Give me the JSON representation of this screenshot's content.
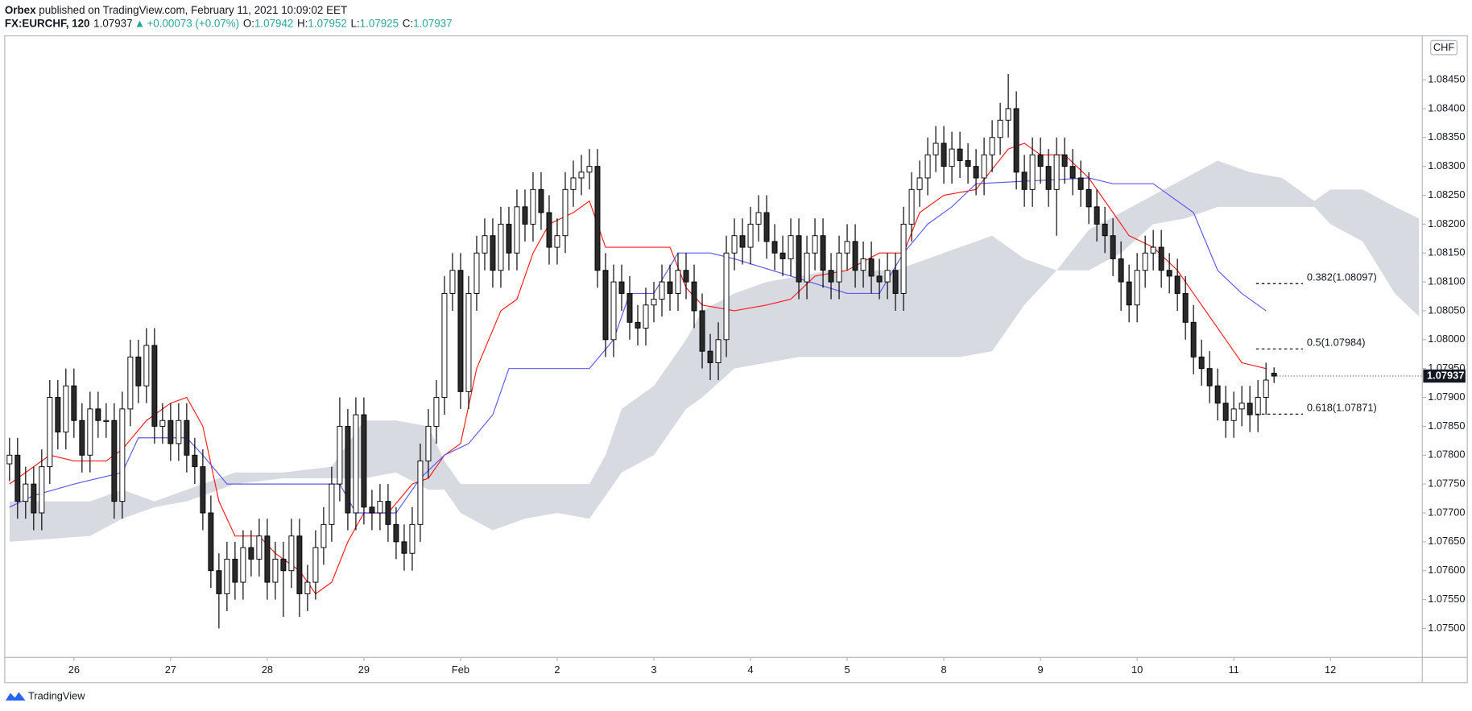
{
  "header": {
    "publisher": "Orbex",
    "published": " published on TradingView.com, February 11, 2021 10:09:02 EET",
    "symbol": "FX:EURCHF, 120",
    "arrow": "▲",
    "change": "+0.00073 (+0.07%)",
    "ohlc_labels": [
      "O:",
      "H:",
      "L:",
      "C:"
    ]
  },
  "footer": {
    "brand": "TradingView"
  },
  "chart_data": {
    "type": "candlestick",
    "currency": "CHF",
    "xlim": [
      -0.6,
      175.4
    ],
    "xticks": [
      {
        "value": 8,
        "label": "26"
      },
      {
        "value": 20,
        "label": "27"
      },
      {
        "value": 32,
        "label": "28"
      },
      {
        "value": 44,
        "label": "29"
      },
      {
        "value": 56,
        "label": "Feb"
      },
      {
        "value": 68,
        "label": "2"
      },
      {
        "value": 80,
        "label": "3"
      },
      {
        "value": 92,
        "label": "4"
      },
      {
        "value": 104,
        "label": "5"
      },
      {
        "value": 116,
        "label": "8"
      },
      {
        "value": 128,
        "label": "9"
      },
      {
        "value": 140,
        "label": "10"
      },
      {
        "value": 152,
        "label": "11"
      },
      {
        "value": 164,
        "label": "12"
      }
    ],
    "ylim": [
      1.0745,
      1.08526
    ],
    "yticks": [
      {
        "value": 1.075,
        "label": "1.07500"
      },
      {
        "value": 1.0755,
        "label": "1.07550"
      },
      {
        "value": 1.076,
        "label": "1.07600"
      },
      {
        "value": 1.0765,
        "label": "1.07650"
      },
      {
        "value": 1.077,
        "label": "1.07700"
      },
      {
        "value": 1.0775,
        "label": "1.07750"
      },
      {
        "value": 1.078,
        "label": "1.07800"
      },
      {
        "value": 1.0785,
        "label": "1.07850"
      },
      {
        "value": 1.079,
        "label": "1.07900"
      },
      {
        "value": 1.0795,
        "label": "1.07950"
      },
      {
        "value": 1.08,
        "label": "1.08000"
      },
      {
        "value": 1.0805,
        "label": "1.08050"
      },
      {
        "value": 1.081,
        "label": "1.08100"
      },
      {
        "value": 1.0815,
        "label": "1.08150"
      },
      {
        "value": 1.082,
        "label": "1.08200"
      },
      {
        "value": 1.0825,
        "label": "1.08250"
      },
      {
        "value": 1.083,
        "label": "1.08300"
      },
      {
        "value": 1.0835,
        "label": "1.08350"
      },
      {
        "value": 1.084,
        "label": "1.08400"
      },
      {
        "value": 1.0845,
        "label": "1.08450"
      }
    ],
    "grid": false,
    "up_color": "#ffffff",
    "down_color": "#2a2a2a",
    "wick_color": "#000000",
    "open": [
      1.07785,
      1.078,
      1.0772,
      1.0775,
      1.077,
      1.0778,
      1.079,
      1.0784,
      1.0792,
      1.0786,
      1.078,
      1.0788,
      1.0786,
      1.0786,
      1.0772,
      1.0788,
      1.0797,
      1.0792,
      1.0799,
      1.0785,
      1.0786,
      1.0782,
      1.0786,
      1.078,
      1.0778,
      1.077,
      1.076,
      1.0756,
      1.0762,
      1.0758,
      1.0764,
      1.0762,
      1.0766,
      1.0758,
      1.0762,
      1.076,
      1.0766,
      1.0756,
      1.0758,
      1.0764,
      1.0768,
      1.0775,
      1.0785,
      1.077,
      1.0787,
      1.0771,
      1.077,
      1.0772,
      1.0768,
      1.0765,
      1.0763,
      1.0768,
      1.0779,
      1.0785,
      1.079,
      1.0808,
      1.0812,
      1.0791,
      1.0808,
      1.0815,
      1.0818,
      1.0812,
      1.082,
      1.0815,
      1.0823,
      1.082,
      1.0826,
      1.0822,
      1.0816,
      1.0818,
      1.0826,
      1.0828,
      1.0829,
      1.083,
      1.0812,
      1.08,
      1.081,
      1.0808,
      1.0803,
      1.0802,
      1.0806,
      1.0807,
      1.081,
      1.0808,
      1.0812,
      1.081,
      1.0805,
      1.0798,
      1.0796,
      1.08,
      1.0815,
      1.0818,
      1.0816,
      1.082,
      1.0822,
      1.0817,
      1.0815,
      1.0814,
      1.0818,
      1.081,
      1.0815,
      1.0818,
      1.0812,
      1.081,
      1.0815,
      1.0817,
      1.0812,
      1.0814,
      1.0811,
      1.081,
      1.0812,
      1.0808,
      1.082,
      1.0826,
      1.0828,
      1.0832,
      1.0834,
      1.083,
      1.0833,
      1.0831,
      1.083,
      1.0828,
      1.0832,
      1.0835,
      1.0838,
      1.084,
      1.0829,
      1.0826,
      1.0832,
      1.083,
      1.0826,
      1.0832,
      1.083,
      1.0828,
      1.0826,
      1.0823,
      1.082,
      1.0818,
      1.0814,
      1.081,
      1.0806,
      1.0812,
      1.0815,
      1.0816,
      1.0812,
      1.0811,
      1.0808,
      1.0803,
      1.0797,
      1.0795,
      1.0792,
      1.0789,
      1.0786,
      1.0788,
      1.0789,
      1.0787,
      1.079,
      1.07942
    ],
    "high": [
      1.0783,
      1.0783,
      1.0778,
      1.0778,
      1.0781,
      1.0793,
      1.0793,
      1.0795,
      1.0795,
      1.0789,
      1.0791,
      1.0791,
      1.0789,
      1.0789,
      1.0791,
      1.08,
      1.08,
      1.0802,
      1.0802,
      1.0789,
      1.0789,
      1.0789,
      1.0789,
      1.0783,
      1.0781,
      1.0773,
      1.0763,
      1.0765,
      1.0765,
      1.0767,
      1.0767,
      1.0769,
      1.0769,
      1.0765,
      1.0765,
      1.0769,
      1.0769,
      1.0761,
      1.0767,
      1.0771,
      1.0778,
      1.079,
      1.0788,
      1.079,
      1.079,
      1.0774,
      1.0775,
      1.0775,
      1.0771,
      1.0768,
      1.0771,
      1.0782,
      1.0788,
      1.0793,
      1.0811,
      1.0815,
      1.0815,
      1.0811,
      1.0818,
      1.0821,
      1.0821,
      1.0823,
      1.0823,
      1.0826,
      1.0826,
      1.0829,
      1.0829,
      1.0825,
      1.0821,
      1.0829,
      1.0831,
      1.0832,
      1.0833,
      1.0833,
      1.0815,
      1.0813,
      1.0813,
      1.0811,
      1.0806,
      1.0809,
      1.081,
      1.0813,
      1.0813,
      1.0815,
      1.0815,
      1.0813,
      1.0808,
      1.0801,
      1.0803,
      1.0818,
      1.0821,
      1.0821,
      1.0823,
      1.0825,
      1.0825,
      1.082,
      1.0818,
      1.0821,
      1.0821,
      1.0818,
      1.0821,
      1.0821,
      1.0815,
      1.0818,
      1.082,
      1.082,
      1.0817,
      1.0817,
      1.0814,
      1.0815,
      1.0815,
      1.0823,
      1.0829,
      1.0831,
      1.0835,
      1.0837,
      1.0837,
      1.0836,
      1.0836,
      1.0834,
      1.0833,
      1.0835,
      1.0838,
      1.0841,
      1.0846,
      1.0843,
      1.0832,
      1.0835,
      1.0835,
      1.0833,
      1.0835,
      1.0835,
      1.0833,
      1.0831,
      1.0829,
      1.0826,
      1.0823,
      1.0821,
      1.0817,
      1.0813,
      1.0815,
      1.0818,
      1.0819,
      1.0819,
      1.0815,
      1.0814,
      1.0811,
      1.0806,
      1.08,
      1.0798,
      1.0795,
      1.0792,
      1.0791,
      1.0792,
      1.0792,
      1.0793,
      1.0796,
      1.07952
    ],
    "low": [
      1.07755,
      1.0769,
      1.0769,
      1.0767,
      1.0767,
      1.0775,
      1.0781,
      1.0781,
      1.0783,
      1.0777,
      1.0777,
      1.0783,
      1.0783,
      1.0769,
      1.0769,
      1.0785,
      1.0789,
      1.0789,
      1.0782,
      1.0782,
      1.0779,
      1.0779,
      1.0777,
      1.0775,
      1.0767,
      1.0757,
      1.075,
      1.0753,
      1.0755,
      1.0755,
      1.0759,
      1.0759,
      1.0755,
      1.0755,
      1.0752,
      1.0757,
      1.0752,
      1.0753,
      1.0755,
      1.0761,
      1.0765,
      1.0772,
      1.0767,
      1.0767,
      1.0768,
      1.0767,
      1.0767,
      1.0765,
      1.0762,
      1.076,
      1.076,
      1.0765,
      1.0776,
      1.0782,
      1.0787,
      1.0805,
      1.0788,
      1.0788,
      1.0805,
      1.0812,
      1.0809,
      1.0809,
      1.0812,
      1.0812,
      1.0817,
      1.0817,
      1.0819,
      1.0813,
      1.0813,
      1.0815,
      1.0823,
      1.0825,
      1.0826,
      1.0809,
      1.0797,
      1.0797,
      1.0805,
      1.08,
      1.0799,
      1.0799,
      1.0803,
      1.0804,
      1.0805,
      1.0805,
      1.0807,
      1.0802,
      1.0795,
      1.0793,
      1.0793,
      1.0797,
      1.0812,
      1.0813,
      1.0813,
      1.0817,
      1.0814,
      1.0812,
      1.0811,
      1.0811,
      1.0807,
      1.0807,
      1.0812,
      1.0809,
      1.0807,
      1.0807,
      1.0812,
      1.0809,
      1.0809,
      1.0808,
      1.0807,
      1.0807,
      1.0805,
      1.0805,
      1.0817,
      1.0823,
      1.0825,
      1.0829,
      1.0827,
      1.0827,
      1.0828,
      1.0827,
      1.0825,
      1.0825,
      1.0829,
      1.0832,
      1.0835,
      1.0826,
      1.0823,
      1.0823,
      1.0827,
      1.0823,
      1.0818,
      1.0827,
      1.0825,
      1.0823,
      1.082,
      1.0817,
      1.0815,
      1.0811,
      1.0805,
      1.0803,
      1.0803,
      1.0809,
      1.0812,
      1.0809,
      1.0808,
      1.0805,
      1.08,
      1.0794,
      1.0792,
      1.0789,
      1.0786,
      1.0783,
      1.0783,
      1.0785,
      1.0784,
      1.0784,
      1.0787,
      1.07925
    ],
    "close": [
      1.078,
      1.0772,
      1.0775,
      1.077,
      1.0778,
      1.079,
      1.0784,
      1.0792,
      1.0786,
      1.078,
      1.0788,
      1.0786,
      1.0786,
      1.0772,
      1.0788,
      1.0797,
      1.0792,
      1.0799,
      1.0785,
      1.0786,
      1.0782,
      1.0786,
      1.078,
      1.0778,
      1.077,
      1.076,
      1.0756,
      1.0762,
      1.0758,
      1.0764,
      1.0762,
      1.0766,
      1.0758,
      1.0762,
      1.076,
      1.0766,
      1.0756,
      1.0758,
      1.0764,
      1.0768,
      1.0775,
      1.0785,
      1.077,
      1.0787,
      1.0771,
      1.077,
      1.0772,
      1.0768,
      1.0765,
      1.0763,
      1.0768,
      1.0779,
      1.0785,
      1.079,
      1.0808,
      1.0812,
      1.0791,
      1.0808,
      1.0815,
      1.0818,
      1.0812,
      1.082,
      1.0815,
      1.0823,
      1.082,
      1.0826,
      1.0822,
      1.0816,
      1.0818,
      1.0826,
      1.0828,
      1.0829,
      1.083,
      1.0812,
      1.08,
      1.081,
      1.0808,
      1.0803,
      1.0802,
      1.0806,
      1.0807,
      1.081,
      1.0808,
      1.0812,
      1.081,
      1.0805,
      1.0798,
      1.0796,
      1.08,
      1.0815,
      1.0818,
      1.0816,
      1.082,
      1.0822,
      1.0817,
      1.0815,
      1.0814,
      1.0818,
      1.081,
      1.0815,
      1.0818,
      1.0812,
      1.081,
      1.0815,
      1.0817,
      1.0812,
      1.0814,
      1.0811,
      1.081,
      1.0812,
      1.0808,
      1.082,
      1.0826,
      1.0828,
      1.0832,
      1.0834,
      1.083,
      1.0833,
      1.0831,
      1.083,
      1.0828,
      1.0832,
      1.0835,
      1.0838,
      1.084,
      1.0829,
      1.0826,
      1.0832,
      1.083,
      1.0826,
      1.0832,
      1.083,
      1.0828,
      1.0826,
      1.0823,
      1.082,
      1.0818,
      1.0814,
      1.081,
      1.0806,
      1.0812,
      1.0815,
      1.0816,
      1.0812,
      1.0811,
      1.0808,
      1.0803,
      1.0797,
      1.0795,
      1.0792,
      1.0789,
      1.0786,
      1.0788,
      1.0789,
      1.0787,
      1.079,
      1.0793,
      1.07937
    ],
    "lines": [
      {
        "color": "#ff1a1a",
        "x": [
          0,
          5,
          8,
          12,
          14,
          17,
          20,
          22,
          24,
          26,
          28,
          31,
          33,
          36,
          38,
          40,
          42,
          44,
          47,
          50,
          52,
          54,
          56,
          58,
          61,
          63,
          65,
          67,
          70,
          72,
          74,
          76,
          82,
          84,
          86,
          90,
          94,
          97,
          100,
          104,
          108,
          111,
          113,
          116,
          120,
          124,
          126,
          128,
          131,
          134,
          137,
          139,
          142,
          145,
          148,
          150,
          153,
          156
        ],
        "values": [
          1.0775,
          1.078,
          1.0779,
          1.0779,
          1.0781,
          1.0786,
          1.0789,
          1.079,
          1.0785,
          1.0772,
          1.0766,
          1.0766,
          1.0763,
          1.076,
          1.0756,
          1.0758,
          1.0765,
          1.077,
          1.077,
          1.0775,
          1.0776,
          1.078,
          1.0782,
          1.0795,
          1.0805,
          1.0807,
          1.0815,
          1.082,
          1.0822,
          1.0824,
          1.0816,
          1.0816,
          1.0816,
          1.0809,
          1.0806,
          1.0805,
          1.0806,
          1.0807,
          1.0811,
          1.0812,
          1.0815,
          1.0815,
          1.0822,
          1.0825,
          1.0826,
          1.0833,
          1.0834,
          1.0832,
          1.0832,
          1.0828,
          1.0822,
          1.0818,
          1.0816,
          1.0812,
          1.0806,
          1.0802,
          1.0796,
          1.0795
        ]
      },
      {
        "color": "#5a5af2",
        "x": [
          0,
          3,
          8,
          14,
          16,
          22,
          24,
          27,
          38,
          41,
          43,
          48,
          51,
          54,
          57,
          60,
          62,
          72,
          75,
          77,
          80,
          83,
          87,
          90,
          104,
          108,
          111,
          114,
          117,
          120,
          134,
          137,
          142,
          147,
          150,
          153,
          156
        ],
        "values": [
          1.0771,
          1.0773,
          1.0775,
          1.0777,
          1.0783,
          1.0783,
          1.078,
          1.0775,
          1.0775,
          1.0775,
          1.077,
          1.077,
          1.0776,
          1.078,
          1.0782,
          1.0787,
          1.0795,
          1.0795,
          1.08,
          1.0808,
          1.0808,
          1.0815,
          1.0815,
          1.0814,
          1.0808,
          1.0808,
          1.0815,
          1.082,
          1.0823,
          1.0827,
          1.0828,
          1.0827,
          1.0827,
          1.0822,
          1.0812,
          1.0808,
          1.0805
        ]
      }
    ],
    "cloud": {
      "color": "#d1d4dc",
      "x": [
        0,
        10,
        14,
        18,
        22,
        24,
        28,
        34,
        40,
        44,
        48,
        52,
        54,
        56,
        60,
        64,
        68,
        72,
        74,
        76,
        80,
        84,
        86,
        90,
        94,
        98,
        102,
        106,
        110,
        114,
        118,
        122,
        126,
        130,
        134,
        138,
        142,
        146,
        150,
        154,
        158,
        162,
        164,
        168,
        172,
        175
      ],
      "upper": [
        1.0772,
        1.0772,
        1.0774,
        1.0772,
        1.0774,
        1.0775,
        1.0777,
        1.0777,
        1.0778,
        1.0786,
        1.0786,
        1.0785,
        1.0779,
        1.0775,
        1.0775,
        1.0775,
        1.0775,
        1.0775,
        1.078,
        1.0788,
        1.0792,
        1.08,
        1.0805,
        1.0808,
        1.081,
        1.0811,
        1.0812,
        1.0812,
        1.0812,
        1.0814,
        1.0816,
        1.0818,
        1.0814,
        1.0812,
        1.0819,
        1.0822,
        1.0825,
        1.0828,
        1.0831,
        1.0829,
        1.0828,
        1.0824,
        1.0826,
        1.0826,
        1.0823,
        1.0821
      ],
      "lower": [
        1.0765,
        1.0766,
        1.0769,
        1.0771,
        1.0772,
        1.0773,
        1.0775,
        1.0776,
        1.0776,
        1.0776,
        1.0777,
        1.0774,
        1.0774,
        1.077,
        1.0767,
        1.0769,
        1.077,
        1.0769,
        1.0773,
        1.0777,
        1.078,
        1.0788,
        1.079,
        1.0795,
        1.0796,
        1.0797,
        1.0797,
        1.0797,
        1.0797,
        1.0797,
        1.0797,
        1.0798,
        1.0806,
        1.0812,
        1.0812,
        1.0815,
        1.082,
        1.0821,
        1.0823,
        1.0823,
        1.0823,
        1.0823,
        1.082,
        1.0817,
        1.0808,
        1.0804
      ]
    },
    "fib_levels": [
      {
        "label": "0.382(1.08097)",
        "value": 1.08097
      },
      {
        "label": "0.5(1.07984)",
        "value": 1.07984
      },
      {
        "label": "0.618(1.07871)",
        "value": 1.07871
      }
    ]
  }
}
